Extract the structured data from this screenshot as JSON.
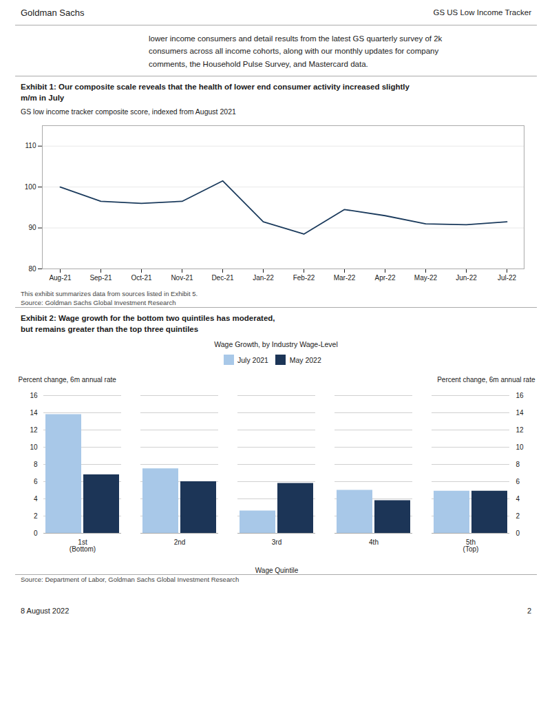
{
  "header_left": "Goldman Sachs",
  "header_right": "GS US Low Income Tracker",
  "body_text": "lower income consumers and detail results from the latest GS quarterly survey of 2k\nconsumers across all income cohorts, along with our monthly updates for company\ncomments, the Household Pulse Survey, and Mastercard data.",
  "footer_left": "8 August 2022",
  "footer_right": "2",
  "chart_data": [
    {
      "type": "line",
      "title": "Exhibit 1: Our composite scale reveals that the health of lower end consumer activity increased slightly\nm/m in July",
      "subtitle": "GS low income tracker composite score, indexed from August 2021",
      "categories": [
        "Aug-21",
        "Sep-21",
        "Oct-21",
        "Nov-21",
        "Dec-21",
        "Jan-22",
        "Feb-22",
        "Mar-22",
        "Apr-22",
        "May-22",
        "Jun-22",
        "Jul-22"
      ],
      "values": [
        100,
        96.5,
        96.0,
        96.5,
        101.5,
        91.5,
        88.5,
        94.5,
        93.0,
        91.0,
        90.8,
        91.5
      ],
      "color": "#1a3a5c",
      "ylim": [
        80,
        115
      ],
      "yticks": [
        80,
        90,
        100,
        110
      ],
      "grid": true,
      "note": "This exhibit summarizes data from sources listed in Exhibit 5.",
      "source": "Source: Goldman Sachs Global Investment Research"
    },
    {
      "type": "bar",
      "title": "Exhibit 2: Wage growth for the bottom two quintiles has moderated,\nbut remains greater than the top three quintiles",
      "subtitle": "Wage Growth, by Industry Wage-Level",
      "categories": [
        "1st\n(Bottom)",
        "2nd",
        "3rd",
        "4th",
        "5th\n(Top)"
      ],
      "series": [
        {
          "name": "July 2021",
          "color": "#a8c8e8",
          "values": [
            13.8,
            7.5,
            2.6,
            5.0,
            4.9
          ]
        },
        {
          "name": "May 2022",
          "color": "#1c3557",
          "values": [
            6.8,
            6.0,
            5.8,
            3.8,
            4.9
          ]
        }
      ],
      "ylim": [
        0,
        16
      ],
      "yticks": [
        0,
        2,
        4,
        6,
        8,
        10,
        12,
        14,
        16
      ],
      "y2lim": [
        0,
        16
      ],
      "y2ticks": [
        0,
        2,
        4,
        6,
        8,
        10,
        12,
        14,
        16
      ],
      "ylabel": "Percent change, 6m annual rate",
      "y2label": "Percent change, 6m annual rate",
      "xlabel": "Wage Quintile",
      "legend": "top",
      "grid": true,
      "source": "Source: Department of Labor, Goldman Sachs Global Investment Research"
    }
  ]
}
